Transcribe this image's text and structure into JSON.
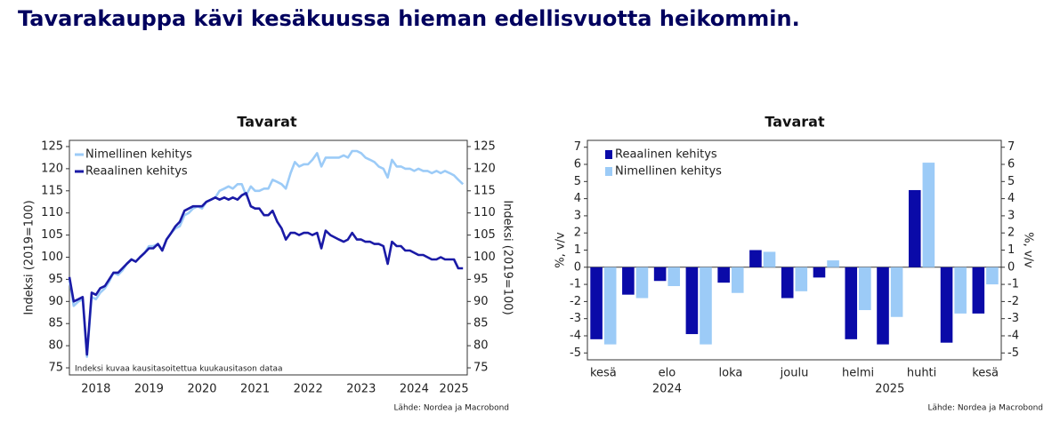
{
  "title": "Tavarakauppa kävi kesäkuussa hieman edellisvuotta heikommin.",
  "chart_data": [
    {
      "type": "line",
      "title": "Tavarat",
      "ylabel": "Indeksi (2019=100)",
      "y2label": "Indeksi (2019=100)",
      "annotation": "Indeksi kuvaa kausitasoitettua kuukausitason dataa",
      "source": "Lähde: Nordea ja Macrobond",
      "xlim": [
        2018,
        2025.5
      ],
      "xticks": [
        {
          "value": 2018.5,
          "label": "2018"
        },
        {
          "value": 2019.5,
          "label": "2019"
        },
        {
          "value": 2020.5,
          "label": "2020"
        },
        {
          "value": 2021.5,
          "label": "2021"
        },
        {
          "value": 2022.5,
          "label": "2022"
        },
        {
          "value": 2023.5,
          "label": "2023"
        },
        {
          "value": 2024.5,
          "label": "2024"
        },
        {
          "value": 2025.25,
          "label": "2025"
        }
      ],
      "ylim": [
        73.4,
        126.4
      ],
      "yticks": [
        75,
        80,
        85,
        90,
        95,
        100,
        105,
        110,
        115,
        120,
        125
      ],
      "y2lim": [
        73.4,
        126.4
      ],
      "y2ticks": [
        75,
        80,
        85,
        90,
        95,
        100,
        105,
        110,
        115,
        120,
        125
      ],
      "legend": "upper left",
      "x": [
        2018.0,
        2018.08,
        2018.17,
        2018.25,
        2018.33,
        2018.42,
        2018.5,
        2018.58,
        2018.67,
        2018.75,
        2018.83,
        2018.92,
        2019.0,
        2019.08,
        2019.17,
        2019.25,
        2019.33,
        2019.42,
        2019.5,
        2019.58,
        2019.67,
        2019.75,
        2019.83,
        2019.92,
        2020.0,
        2020.08,
        2020.17,
        2020.25,
        2020.33,
        2020.42,
        2020.5,
        2020.58,
        2020.67,
        2020.75,
        2020.83,
        2020.92,
        2021.0,
        2021.08,
        2021.17,
        2021.25,
        2021.33,
        2021.42,
        2021.5,
        2021.58,
        2021.67,
        2021.75,
        2021.83,
        2021.92,
        2022.0,
        2022.08,
        2022.17,
        2022.25,
        2022.33,
        2022.42,
        2022.5,
        2022.58,
        2022.67,
        2022.75,
        2022.83,
        2022.92,
        2023.0,
        2023.08,
        2023.17,
        2023.25,
        2023.33,
        2023.42,
        2023.5,
        2023.58,
        2023.67,
        2023.75,
        2023.83,
        2023.92,
        2024.0,
        2024.08,
        2024.17,
        2024.25,
        2024.33,
        2024.42,
        2024.5,
        2024.58,
        2024.67,
        2024.75,
        2024.83,
        2024.92,
        2025.0,
        2025.08,
        2025.17,
        2025.25,
        2025.33,
        2025.42
      ],
      "series": [
        {
          "name": "Nimellinen kehitys",
          "color": "#9ccbf7",
          "values": [
            95,
            89,
            90,
            90.5,
            77.5,
            91,
            90.5,
            92,
            93,
            94.5,
            96.5,
            96,
            97,
            98.5,
            99.5,
            99,
            100,
            101,
            102.5,
            102.5,
            103,
            101.5,
            104,
            105.5,
            106.5,
            107,
            109.5,
            110,
            111,
            111.5,
            111,
            112.5,
            113,
            113.5,
            115,
            115.5,
            116,
            115.5,
            116.5,
            116.5,
            114,
            116,
            115,
            115,
            115.5,
            115.5,
            117.5,
            117,
            116.5,
            115.5,
            119,
            121.5,
            120.5,
            121,
            121,
            122,
            123.5,
            120.5,
            122.5,
            122.5,
            122.5,
            122.5,
            123,
            122.5,
            124,
            124,
            123.5,
            122.5,
            122,
            121.5,
            120.5,
            120,
            118,
            122,
            120.5,
            120.5,
            120,
            120,
            119.5,
            120,
            119.5,
            119.5,
            119,
            119.5,
            119,
            119.5,
            119,
            118.5,
            117.5,
            116.5
          ]
        },
        {
          "name": "Reaalinen kehitys",
          "color": "#1a1aa6",
          "values": [
            95.5,
            90,
            90.5,
            91,
            78,
            92,
            91.5,
            93,
            93.5,
            95,
            96.5,
            96.5,
            97.5,
            98.5,
            99.5,
            99,
            100,
            101,
            102,
            102,
            103,
            101.5,
            104,
            105.5,
            107,
            108,
            110.5,
            111,
            111.5,
            111.5,
            111.5,
            112.5,
            113,
            113.5,
            113,
            113.5,
            113,
            113.5,
            113,
            114,
            114.5,
            111.5,
            111,
            111,
            109.5,
            109.5,
            110.5,
            108,
            106.5,
            104,
            105.5,
            105.5,
            105,
            105.5,
            105.5,
            105,
            105.5,
            102,
            106,
            105,
            104.5,
            104,
            103.5,
            104,
            105.5,
            104,
            104,
            103.5,
            103.5,
            103,
            103,
            102.5,
            98.5,
            103.5,
            102.5,
            102.5,
            101.5,
            101.5,
            101,
            100.5,
            100.5,
            100,
            99.5,
            99.5,
            100,
            99.5,
            99.5,
            99.5,
            97.5,
            97.5
          ]
        }
      ]
    },
    {
      "type": "bar",
      "title": "Tavarat",
      "ylabel": "%, v/v",
      "y2label": "%, v/v",
      "source": "Lähde: Nordea ja Macrobond",
      "categories": [
        "kesä",
        null,
        "elo",
        null,
        "loka",
        null,
        "joulu",
        null,
        "helmi",
        null,
        "huhti",
        null,
        "kesä"
      ],
      "group_labels": [
        "2024",
        "2025"
      ],
      "ylim": [
        -5.4,
        7.4
      ],
      "yticks": [
        -5,
        -4,
        -3,
        -2,
        -1,
        0,
        1,
        2,
        3,
        4,
        5,
        6,
        7
      ],
      "y2lim": [
        -5.4,
        7.4
      ],
      "y2ticks": [
        -5,
        -4,
        -3,
        -2,
        -1,
        0,
        1,
        2,
        3,
        4,
        5,
        6,
        7
      ],
      "legend": "upper left",
      "series": [
        {
          "name": "Reaalinen kehitys",
          "color": "#0a0aa8",
          "values": [
            -4.2,
            -1.6,
            -0.8,
            -3.9,
            -0.9,
            1.0,
            -1.8,
            -0.6,
            -4.2,
            -4.5,
            4.5,
            -4.4,
            -2.7
          ]
        },
        {
          "name": "Nimellinen kehitys",
          "color": "#9ccbf7",
          "values": [
            -4.5,
            -1.8,
            -1.1,
            -4.5,
            -1.5,
            0.9,
            -1.4,
            0.4,
            -2.5,
            -2.9,
            6.1,
            -2.7,
            -1.0
          ]
        }
      ]
    }
  ]
}
